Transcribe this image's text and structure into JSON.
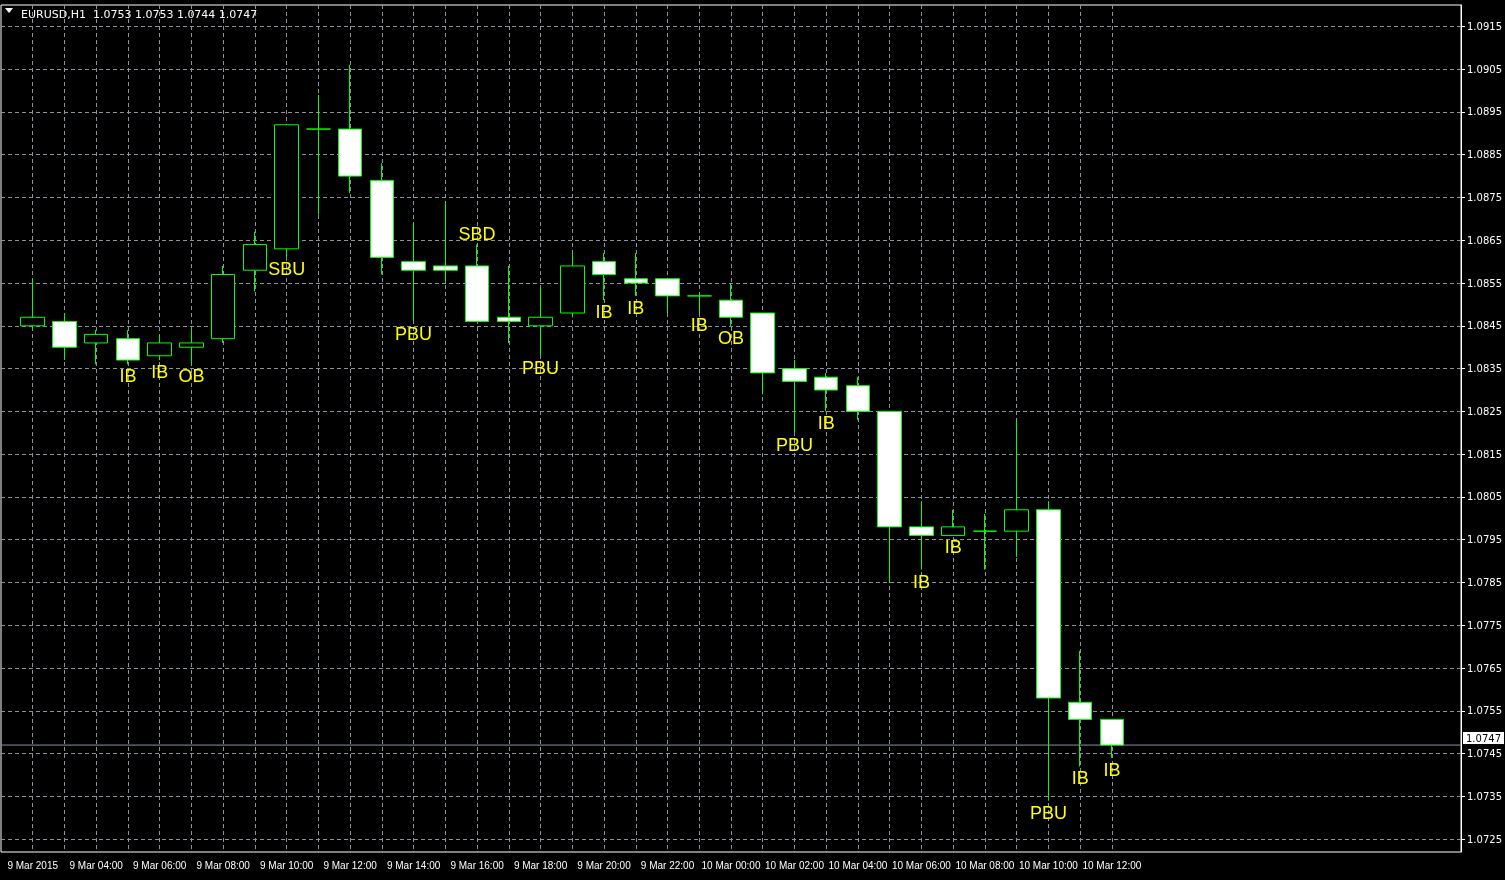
{
  "chart_data": {
    "type": "candlestick",
    "title": "EURUSD,H1  1.0753 1.0753 1.0744 1.0747",
    "x": [
      "2015-03-09T02:00",
      "2015-03-09T03:00",
      "2015-03-09T04:00",
      "2015-03-09T05:00",
      "2015-03-09T06:00",
      "2015-03-09T07:00",
      "2015-03-09T08:00",
      "2015-03-09T09:00",
      "2015-03-09T10:00",
      "2015-03-09T11:00",
      "2015-03-09T12:00",
      "2015-03-09T13:00",
      "2015-03-09T14:00",
      "2015-03-09T15:00",
      "2015-03-09T16:00",
      "2015-03-09T17:00",
      "2015-03-09T18:00",
      "2015-03-09T19:00",
      "2015-03-09T20:00",
      "2015-03-09T21:00",
      "2015-03-09T22:00",
      "2015-03-09T23:00",
      "2015-03-10T00:00",
      "2015-03-10T01:00",
      "2015-03-10T02:00",
      "2015-03-10T03:00",
      "2015-03-10T04:00",
      "2015-03-10T05:00",
      "2015-03-10T06:00",
      "2015-03-10T07:00",
      "2015-03-10T08:00",
      "2015-03-10T09:00",
      "2015-03-10T10:00",
      "2015-03-10T11:00",
      "2015-03-10T12:00"
    ],
    "ohlc": [
      [
        1.0845,
        1.0856,
        1.0844,
        1.0847
      ],
      [
        1.0846,
        1.0848,
        1.0837,
        1.084
      ],
      [
        1.0841,
        1.0844,
        1.0836,
        1.0843
      ],
      [
        1.0842,
        1.0844,
        1.0836,
        1.0837
      ],
      [
        1.0838,
        1.0843,
        1.0837,
        1.0841
      ],
      [
        1.084,
        1.0844,
        1.0836,
        1.0841
      ],
      [
        1.0842,
        1.0859,
        1.0841,
        1.0857
      ],
      [
        1.0858,
        1.0867,
        1.0853,
        1.0864
      ],
      [
        1.0863,
        1.0892,
        1.0861,
        1.0892
      ],
      [
        1.0891,
        1.0899,
        1.0871,
        1.0891
      ],
      [
        1.0891,
        1.0906,
        1.0876,
        1.088
      ],
      [
        1.0879,
        1.0883,
        1.0857,
        1.0861
      ],
      [
        1.086,
        1.0869,
        1.0846,
        1.0858
      ],
      [
        1.0859,
        1.0874,
        1.0855,
        1.0858
      ],
      [
        1.0859,
        1.0864,
        1.0846,
        1.0846
      ],
      [
        1.0847,
        1.0859,
        1.0841,
        1.0846
      ],
      [
        1.0845,
        1.0854,
        1.0838,
        1.0847
      ],
      [
        1.0848,
        1.0862,
        1.0847,
        1.0859
      ],
      [
        1.086,
        1.0862,
        1.0851,
        1.0857
      ],
      [
        1.0856,
        1.0862,
        1.0852,
        1.0855
      ],
      [
        1.0856,
        1.0856,
        1.0848,
        1.0852
      ],
      [
        1.0852,
        1.0852,
        1.0848,
        1.0852
      ],
      [
        1.0851,
        1.0855,
        1.0845,
        1.0847
      ],
      [
        1.0848,
        1.0848,
        1.0829,
        1.0834
      ],
      [
        1.0835,
        1.0837,
        1.082,
        1.0832
      ],
      [
        1.0833,
        1.0834,
        1.0825,
        1.083
      ],
      [
        1.0831,
        1.0833,
        1.0823,
        1.0825
      ],
      [
        1.0825,
        1.0825,
        1.0785,
        1.0798
      ],
      [
        1.0798,
        1.0804,
        1.0788,
        1.0796
      ],
      [
        1.0796,
        1.0802,
        1.0796,
        1.0798
      ],
      [
        1.0797,
        1.0801,
        1.0788,
        1.0797
      ],
      [
        1.0797,
        1.0823,
        1.0791,
        1.0802
      ],
      [
        1.0802,
        1.0804,
        1.0734,
        1.0758
      ],
      [
        1.0757,
        1.0769,
        1.0742,
        1.0753
      ],
      [
        1.0753,
        1.0753,
        1.0744,
        1.0747
      ]
    ],
    "color": "#00ff00",
    "colors": [
      "#000000",
      "#ffffff",
      "#000000",
      "#ffffff",
      "#000000",
      "#000000",
      "#000000",
      "#000000",
      "#000000",
      "#00ff00",
      "#ffffff",
      "#ffffff",
      "#ffffff",
      "#ffffff",
      "#ffffff",
      "#ffffff",
      "#000000",
      "#000000",
      "#ffffff",
      "#ffffff",
      "#ffffff",
      "#00ff00",
      "#ffffff",
      "#ffffff",
      "#ffffff",
      "#ffffff",
      "#ffffff",
      "#ffffff",
      "#ffffff",
      "#000000",
      "#00ff00",
      "#000000",
      "#ffffff",
      "#ffffff",
      "#ffffff"
    ],
    "xlim": [
      "2015-03-09T01:00",
      "2015-03-10T23:00"
    ],
    "xticks": [
      {
        "value": "2015-03-09T02:00",
        "label": "9 Mar 2015"
      },
      {
        "value": "2015-03-09T03:00",
        "label": null
      },
      {
        "value": "2015-03-09T04:00",
        "label": "9 Mar 04:00"
      },
      {
        "value": "2015-03-09T05:00",
        "label": null
      },
      {
        "value": "2015-03-09T06:00",
        "label": "9 Mar 06:00"
      },
      {
        "value": "2015-03-09T07:00",
        "label": null
      },
      {
        "value": "2015-03-09T08:00",
        "label": "9 Mar 08:00"
      },
      {
        "value": "2015-03-09T09:00",
        "label": null
      },
      {
        "value": "2015-03-09T10:00",
        "label": "9 Mar 10:00"
      },
      {
        "value": "2015-03-09T11:00",
        "label": null
      },
      {
        "value": "2015-03-09T12:00",
        "label": "9 Mar 12:00"
      },
      {
        "value": "2015-03-09T13:00",
        "label": null
      },
      {
        "value": "2015-03-09T14:00",
        "label": "9 Mar 14:00"
      },
      {
        "value": "2015-03-09T15:00",
        "label": null
      },
      {
        "value": "2015-03-09T16:00",
        "label": "9 Mar 16:00"
      },
      {
        "value": "2015-03-09T17:00",
        "label": null
      },
      {
        "value": "2015-03-09T18:00",
        "label": "9 Mar 18:00"
      },
      {
        "value": "2015-03-09T19:00",
        "label": null
      },
      {
        "value": "2015-03-09T20:00",
        "label": "9 Mar 20:00"
      },
      {
        "value": "2015-03-09T21:00",
        "label": null
      },
      {
        "value": "2015-03-09T22:00",
        "label": "9 Mar 22:00"
      },
      {
        "value": "2015-03-09T23:00",
        "label": null
      },
      {
        "value": "2015-03-10T00:00",
        "label": "10 Mar 00:00"
      },
      {
        "value": "2015-03-10T01:00",
        "label": null
      },
      {
        "value": "2015-03-10T02:00",
        "label": "10 Mar 02:00"
      },
      {
        "value": "2015-03-10T03:00",
        "label": null
      },
      {
        "value": "2015-03-10T04:00",
        "label": "10 Mar 04:00"
      },
      {
        "value": "2015-03-10T05:00",
        "label": null
      },
      {
        "value": "2015-03-10T06:00",
        "label": "10 Mar 06:00"
      },
      {
        "value": "2015-03-10T07:00",
        "label": null
      },
      {
        "value": "2015-03-10T08:00",
        "label": "10 Mar 08:00"
      },
      {
        "value": "2015-03-10T09:00",
        "label": null
      },
      {
        "value": "2015-03-10T10:00",
        "label": "10 Mar 10:00"
      },
      {
        "value": "2015-03-10T11:00",
        "label": null
      },
      {
        "value": "2015-03-10T12:00",
        "label": "10 Mar 12:00"
      }
    ],
    "ylim": [
      1.0722,
      1.092
    ],
    "yticks": [
      1.0725,
      1.0735,
      1.0745,
      1.0755,
      1.0765,
      1.0775,
      1.0785,
      1.0795,
      1.0805,
      1.0815,
      1.0825,
      1.0835,
      1.0845,
      1.0855,
      1.0865,
      1.0875,
      1.0885,
      1.0895,
      1.0905,
      1.0915
    ],
    "grid": true,
    "ref_lines": [
      {
        "axis": "y",
        "value": 1.0747,
        "label": "1.0747",
        "color": "#8a93a0"
      }
    ],
    "annotations": [
      {
        "text": "IB",
        "x": "2015-03-09T05:00",
        "y": 1.0836
      },
      {
        "text": "IB",
        "x": "2015-03-09T06:00",
        "y": 1.0837
      },
      {
        "text": "OB",
        "x": "2015-03-09T07:00",
        "y": 1.0836
      },
      {
        "text": "SBU",
        "x": "2015-03-09T10:00",
        "y": 1.0861
      },
      {
        "text": "PBU",
        "x": "2015-03-09T14:00",
        "y": 1.0846
      },
      {
        "text": "SBD",
        "x": "2015-03-09T16:00",
        "y": 1.0864
      },
      {
        "text": "PBU",
        "x": "2015-03-09T18:00",
        "y": 1.0838
      },
      {
        "text": "IB",
        "x": "2015-03-09T20:00",
        "y": 1.0851
      },
      {
        "text": "IB",
        "x": "2015-03-09T21:00",
        "y": 1.0852
      },
      {
        "text": "IB",
        "x": "2015-03-09T23:00",
        "y": 1.0848
      },
      {
        "text": "OB",
        "x": "2015-03-10T00:00",
        "y": 1.0845
      },
      {
        "text": "PBU",
        "x": "2015-03-10T02:00",
        "y": 1.082
      },
      {
        "text": "IB",
        "x": "2015-03-10T03:00",
        "y": 1.0825
      },
      {
        "text": "IB",
        "x": "2015-03-10T06:00",
        "y": 1.0788
      },
      {
        "text": "IB",
        "x": "2015-03-10T07:00",
        "y": 1.0796
      },
      {
        "text": "PBU",
        "x": "2015-03-10T10:00",
        "y": 1.0734
      },
      {
        "text": "IB",
        "x": "2015-03-10T11:00",
        "y": 1.0742
      },
      {
        "text": "IB",
        "x": "2015-03-10T12:00",
        "y": 1.0744
      }
    ]
  }
}
